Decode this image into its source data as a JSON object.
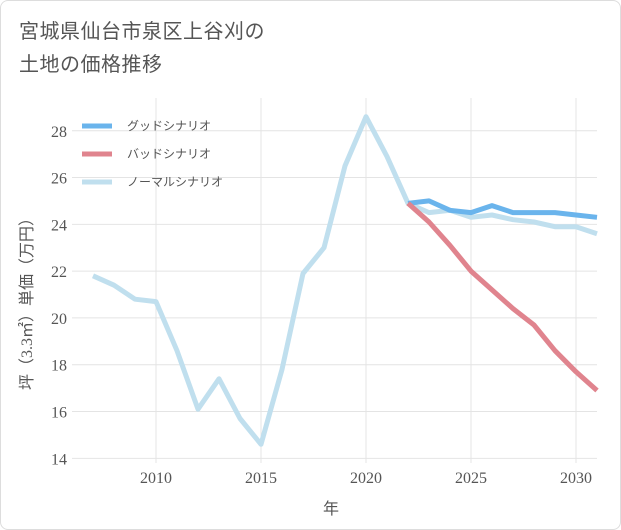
{
  "title_lines": [
    "宮城県仙台市泉区上谷刈の",
    "土地の価格推移"
  ],
  "chart_data": {
    "type": "line",
    "title": "宮城県仙台市泉区上谷刈の土地の価格推移",
    "xlabel": "年",
    "ylabel": "坪（3.3㎡）単価（万円）",
    "xlim": [
      2006,
      2031
    ],
    "ylim": [
      13.8,
      29.4
    ],
    "xticks": [
      2010,
      2015,
      2020,
      2025,
      2030
    ],
    "yticks": [
      14,
      16,
      18,
      20,
      22,
      24,
      26,
      28
    ],
    "grid": true,
    "legend_position": "top-left",
    "series": [
      {
        "name": "グッドシナリオ",
        "color": "#6ab4ec",
        "x": [
          2022,
          2023,
          2024,
          2025,
          2026,
          2027,
          2028,
          2029,
          2030,
          2031
        ],
        "values": [
          24.9,
          25.0,
          24.6,
          24.5,
          24.8,
          24.5,
          24.5,
          24.5,
          24.4,
          24.3
        ]
      },
      {
        "name": "バッドシナリオ",
        "color": "#e0848e",
        "x": [
          2022,
          2023,
          2024,
          2025,
          2026,
          2027,
          2028,
          2029,
          2030,
          2031
        ],
        "values": [
          24.9,
          24.1,
          23.1,
          22.0,
          21.2,
          20.4,
          19.7,
          18.6,
          17.7,
          16.9
        ]
      },
      {
        "name": "ノーマルシナリオ",
        "color": "#c0dfee",
        "x": [
          2007,
          2008,
          2009,
          2010,
          2011,
          2012,
          2013,
          2014,
          2015,
          2016,
          2017,
          2018,
          2019,
          2020,
          2021,
          2022,
          2023,
          2024,
          2025,
          2026,
          2027,
          2028,
          2029,
          2030,
          2031
        ],
        "values": [
          21.8,
          21.4,
          20.8,
          20.7,
          18.6,
          16.1,
          17.4,
          15.7,
          14.6,
          17.8,
          21.9,
          23.0,
          26.5,
          28.6,
          26.9,
          24.9,
          24.5,
          24.6,
          24.3,
          24.4,
          24.2,
          24.1,
          23.9,
          23.9,
          23.6
        ]
      }
    ]
  }
}
